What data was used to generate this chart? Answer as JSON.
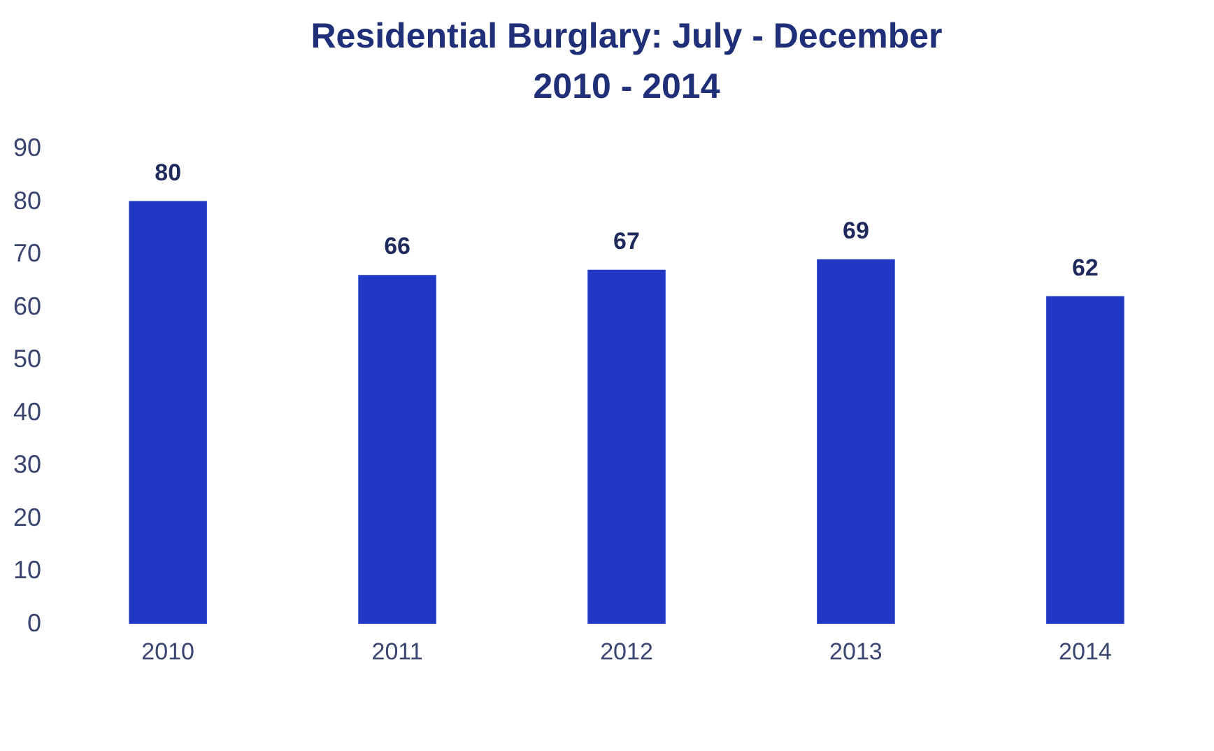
{
  "chart_data": {
    "type": "bar",
    "title": "Residential Burglary: July - December\n2010 - 2014",
    "categories": [
      "2010",
      "2011",
      "2012",
      "2013",
      "2014"
    ],
    "values": [
      80,
      66,
      67,
      69,
      62
    ],
    "color": "#2038c4",
    "ylim": [
      0,
      90
    ],
    "yticks": [
      0,
      10,
      20,
      30,
      40,
      50,
      60,
      70,
      80,
      90
    ],
    "data_labels": true,
    "grid": false
  }
}
